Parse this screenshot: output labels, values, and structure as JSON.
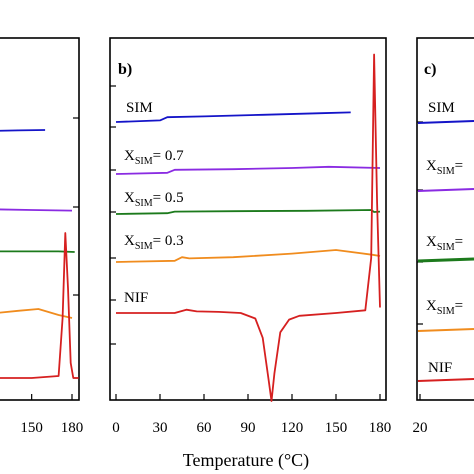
{
  "chart_data": [
    {
      "panel": "a",
      "type": "line",
      "xlim": [
        0,
        180
      ],
      "x_ticks": [
        "150",
        "180"
      ],
      "x_tick_values": [
        150,
        180
      ],
      "series": [
        {
          "name": "",
          "color": "#1414c8",
          "x": [
            0,
            100,
            103,
            106,
            110,
            120,
            140,
            160
          ],
          "y": [
            1.6,
            1.6,
            0.15,
            0.0,
            -0.02,
            -0.02,
            -0.01,
            0.0
          ]
        },
        {
          "name": "",
          "color": "#8a2be2",
          "x": [
            0,
            40,
            100,
            150,
            180
          ],
          "y": [
            0.0,
            -0.01,
            -0.03,
            -0.05,
            -0.06
          ]
        },
        {
          "name": "",
          "color": "#1c7a1c",
          "x": [
            0,
            60,
            120,
            170,
            182
          ],
          "y": [
            0.0,
            0.0,
            0.01,
            0.01,
            0.0
          ]
        },
        {
          "name": "",
          "color": "#f08c1e",
          "x": [
            0,
            100,
            140,
            155,
            170,
            180
          ],
          "y": [
            0.0,
            0.03,
            0.12,
            0.15,
            0.05,
            0.0
          ]
        },
        {
          "name": "",
          "color": "#d62020",
          "x": [
            0,
            100,
            150,
            170,
            173,
            175,
            177,
            179,
            181,
            185
          ],
          "y": [
            0.0,
            0.0,
            0.0,
            0.02,
            0.6,
            1.45,
            0.9,
            0.15,
            0.0,
            0.0
          ]
        }
      ]
    },
    {
      "panel": "b",
      "type": "line",
      "xlim": [
        0,
        180
      ],
      "x_ticks": [
        "0",
        "30",
        "60",
        "90",
        "120",
        "150",
        "180"
      ],
      "x_tick_values": [
        0,
        30,
        60,
        90,
        120,
        150,
        180
      ],
      "series": [
        {
          "name": "SIM",
          "color": "#1414c8",
          "x": [
            0,
            30,
            35,
            60,
            100,
            140,
            160
          ],
          "y": [
            0.0,
            0.02,
            0.06,
            0.07,
            0.09,
            0.11,
            0.12
          ]
        },
        {
          "name": "X_SIM = 0.7",
          "color": "#8a2be2",
          "x": [
            0,
            35,
            40,
            80,
            120,
            145,
            180
          ],
          "y": [
            0.0,
            0.02,
            0.07,
            0.08,
            0.1,
            0.12,
            0.1
          ]
        },
        {
          "name": "X_SIM = 0.5",
          "color": "#1c7a1c",
          "x": [
            0,
            35,
            40,
            80,
            130,
            174,
            176,
            180
          ],
          "y": [
            0.0,
            0.02,
            0.06,
            0.07,
            0.08,
            0.1,
            0.05,
            0.06
          ]
        },
        {
          "name": "X_SIM = 0.3",
          "color": "#f08c1e",
          "x": [
            0,
            40,
            45,
            50,
            80,
            120,
            150,
            175,
            180
          ],
          "y": [
            0.0,
            0.02,
            0.08,
            0.06,
            0.08,
            0.14,
            0.2,
            0.12,
            0.1
          ]
        },
        {
          "name": "NIF",
          "color": "#d62020",
          "x": [
            0,
            40,
            48,
            55,
            70,
            85,
            95,
            100,
            104,
            106,
            108,
            112,
            118,
            125,
            150,
            170,
            174,
            176,
            178,
            180
          ],
          "y": [
            0.0,
            0.0,
            0.06,
            0.03,
            0.02,
            0.0,
            -0.1,
            -0.45,
            -1.2,
            -1.6,
            -1.1,
            -0.35,
            -0.12,
            -0.05,
            0.0,
            0.05,
            1.0,
            4.7,
            2.0,
            0.1
          ]
        }
      ]
    },
    {
      "panel": "c",
      "type": "line",
      "xlim": [
        20,
        180
      ],
      "x_ticks": [
        "20"
      ],
      "x_tick_values": [
        20
      ],
      "series": [
        {
          "name": "SIM",
          "color": "#1414c8"
        },
        {
          "name": "X_SIM = 0.7",
          "color": "#8a2be2"
        },
        {
          "name": "X_SIM = 0.5",
          "color": "#1c7a1c"
        },
        {
          "name": "X_SIM = 0.3",
          "color": "#f08c1e"
        },
        {
          "name": "NIF",
          "color": "#d62020"
        }
      ]
    }
  ],
  "labels": {
    "panel_b": "b)",
    "panel_c": "c)",
    "x_axis_title": "Temperature (°C)",
    "sim": "SIM",
    "x_prefix": "X",
    "x_subscript": "SIM",
    "x_07_value": "= 0.7",
    "x_05_value": "= 0.5",
    "x_03_value": "= 0.3",
    "nif": "NIF",
    "c_sim": "SIM",
    "c_x_prefix": "X",
    "c_x_subscript": "SIM",
    "c_eq": "=",
    "c_nif": "NIF"
  }
}
